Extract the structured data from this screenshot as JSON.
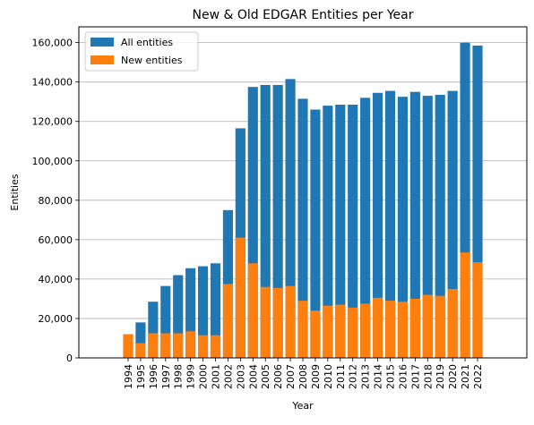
{
  "chart_data": {
    "type": "bar",
    "title": "New & Old EDGAR Entities per Year",
    "xlabel": "Year",
    "ylabel": "Entities",
    "ylim": [
      0,
      168000
    ],
    "yticks": [
      0,
      20000,
      40000,
      60000,
      80000,
      100000,
      120000,
      140000,
      160000
    ],
    "ytick_labels": [
      "0",
      "20,000",
      "40,000",
      "60,000",
      "80,000",
      "100,000",
      "120,000",
      "140,000",
      "160,000"
    ],
    "grid": "horizontal",
    "legend_position": "top-left",
    "categories": [
      "1994",
      "1995",
      "1996",
      "1997",
      "1998",
      "1999",
      "2000",
      "2001",
      "2002",
      "2003",
      "2004",
      "2005",
      "2006",
      "2007",
      "2008",
      "2009",
      "2010",
      "2011",
      "2012",
      "2013",
      "2014",
      "2015",
      "2016",
      "2017",
      "2018",
      "2019",
      "2020",
      "2021",
      "2022"
    ],
    "series": [
      {
        "name": "All entities",
        "color": "#1f77b4",
        "values": [
          12000,
          18000,
          28500,
          36500,
          42000,
          45500,
          46500,
          48000,
          75000,
          116500,
          137500,
          138500,
          138500,
          141500,
          131500,
          126000,
          128000,
          128500,
          128500,
          132000,
          134500,
          135500,
          132500,
          135000,
          133000,
          133500,
          135500,
          160000,
          158500
        ]
      },
      {
        "name": "New entities",
        "color": "#ff7f0e",
        "values": [
          12000,
          7500,
          12500,
          12500,
          12500,
          13500,
          11500,
          11500,
          37500,
          61000,
          48000,
          36000,
          35500,
          36500,
          29000,
          24000,
          26500,
          27000,
          25500,
          27500,
          30500,
          29000,
          28500,
          30000,
          32000,
          31500,
          35000,
          53500,
          48500
        ]
      }
    ]
  }
}
